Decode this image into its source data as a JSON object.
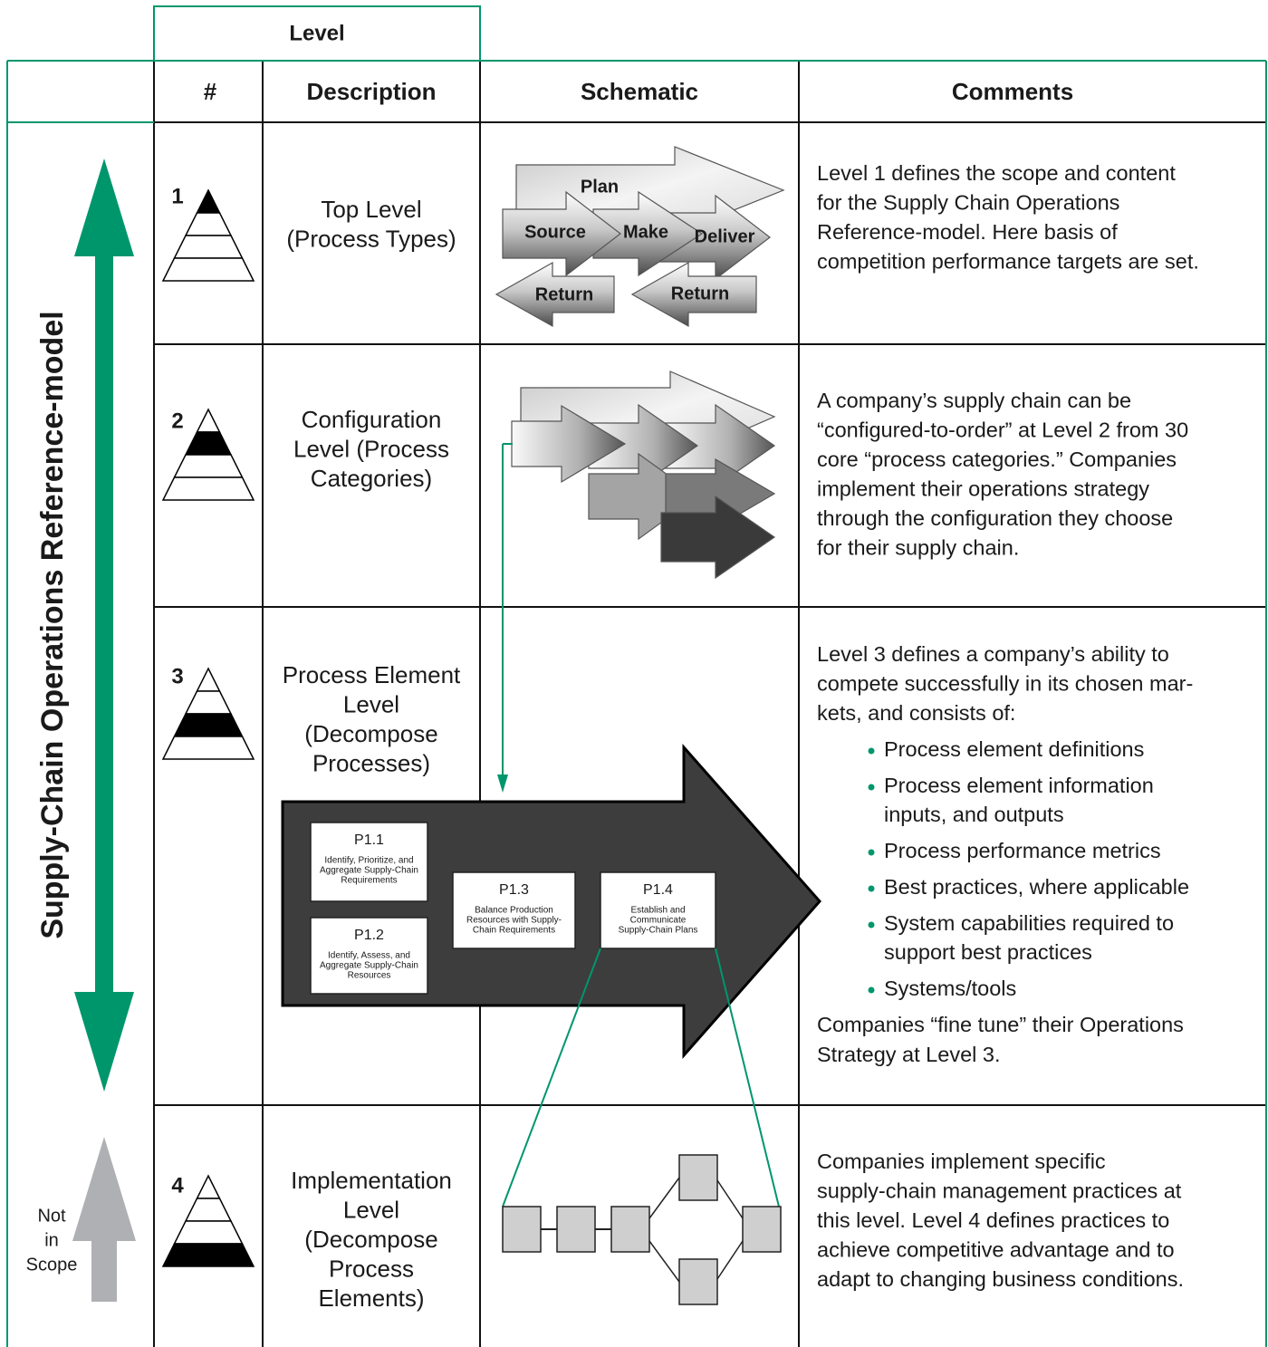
{
  "header": {
    "group": "Level",
    "columns": [
      "#",
      "Description",
      "Schematic",
      "Comments"
    ]
  },
  "side": {
    "label": "Supply-Chain Operations Reference-model",
    "out_of_scope": [
      "Not",
      "in",
      "Scope"
    ]
  },
  "rows": [
    {
      "number": "1",
      "description": [
        "Top Level",
        "(Process Types)"
      ],
      "comments": {
        "lines": [
          "Level 1 defines the scope and content",
          "for the Supply Chain Operations",
          "Reference-model. Here basis of",
          "competition performance targets are set."
        ]
      }
    },
    {
      "number": "2",
      "description": [
        "Configuration",
        "Level (Process",
        "Categories)"
      ],
      "comments": {
        "lines": [
          "A company’s supply chain can be",
          "“configured-to-order” at Level 2 from 30",
          "core “process categories.” Companies",
          "implement their operations strategy",
          "through the configuration they choose",
          "for their supply chain."
        ]
      }
    },
    {
      "number": "3",
      "description": [
        "Process Element",
        "Level",
        "(Decompose",
        "Processes)"
      ],
      "comments": {
        "lines": [
          "Level 3 defines a company’s ability to",
          "compete successfully in its chosen mar-",
          "kets, and consists of:"
        ],
        "bullets": [
          [
            "Process element definitions"
          ],
          [
            "Process element information",
            "inputs, and outputs"
          ],
          [
            "Process performance metrics"
          ],
          [
            "Best practices, where applicable"
          ],
          [
            "System capabilities required to",
            "support best practices"
          ],
          [
            "Systems/tools"
          ]
        ],
        "outro": [
          "Companies “fine tune” their Operations",
          "Strategy at Level 3."
        ]
      }
    },
    {
      "number": "4",
      "description": [
        "Implementation",
        "Level",
        "(Decompose",
        "Process",
        "Elements)"
      ],
      "comments": {
        "lines": [
          "Companies implement specific",
          "supply-chain management practices at",
          "this level. Level 4 defines practices to",
          "achieve competitive advantage and to",
          "adapt to changing business conditions."
        ]
      }
    }
  ],
  "schematic_level1": {
    "plan": "Plan",
    "source": "Source",
    "make": "Make",
    "deliver": "Deliver",
    "returns": [
      "Return",
      "Return"
    ]
  },
  "process_elements": [
    {
      "id": "P1.1",
      "label": [
        "Identify, Prioritize, and",
        "Aggregate Supply-Chain",
        "Requirements"
      ]
    },
    {
      "id": "P1.2",
      "label": [
        "Identify, Assess, and",
        "Aggregate Supply-Chain",
        "Resources"
      ]
    },
    {
      "id": "P1.3",
      "label": [
        "Balance Production",
        "Resources with Supply-",
        "Chain Requirements"
      ]
    },
    {
      "id": "P1.4",
      "label": [
        "Establish and",
        "Communicate",
        "Supply-Chain Plans"
      ]
    }
  ]
}
